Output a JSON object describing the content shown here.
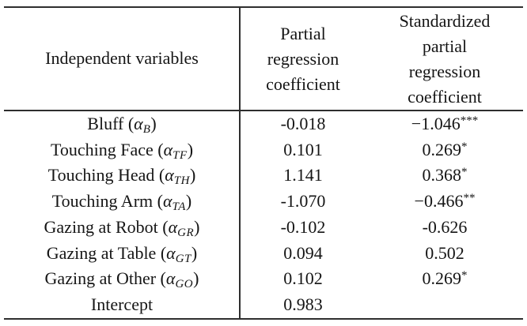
{
  "page": {
    "background_color": "#ffffff",
    "text_color": "#151515",
    "rule_color": "#2e2e2e"
  },
  "table": {
    "headers": {
      "col1": "Independent variables",
      "col2_lines": [
        "Partial",
        "regression",
        "coefficient"
      ],
      "col3_lines": [
        "Standardized",
        "partial",
        "regression",
        "coefficient"
      ]
    },
    "rows": [
      {
        "label_pre": "Bluff (",
        "alpha": "α",
        "sub": "B",
        "label_post": ")",
        "partial": "-0.018",
        "std": "−1.046",
        "stars": "***"
      },
      {
        "label_pre": "Touching Face (",
        "alpha": "α",
        "sub": "TF",
        "label_post": ")",
        "partial": "0.101",
        "std": "0.269",
        "stars": "*"
      },
      {
        "label_pre": "Touching Head (",
        "alpha": "α",
        "sub": "TH",
        "label_post": ")",
        "partial": "1.141",
        "std": "0.368",
        "stars": "*"
      },
      {
        "label_pre": "Touching Arm (",
        "alpha": "α",
        "sub": "TA",
        "label_post": ")",
        "partial": "-1.070",
        "std": "−0.466",
        "stars": "**"
      },
      {
        "label_pre": "Gazing at Robot (",
        "alpha": "α",
        "sub": "GR",
        "label_post": ")",
        "partial": "-0.102",
        "std": "-0.626",
        "stars": ""
      },
      {
        "label_pre": "Gazing at Table (",
        "alpha": "α",
        "sub": "GT",
        "label_post": ")",
        "partial": "0.094",
        "std": "0.502",
        "stars": ""
      },
      {
        "label_pre": "Gazing at Other (",
        "alpha": "α",
        "sub": "GO",
        "label_post": ")",
        "partial": "0.102",
        "std": "0.269",
        "stars": "*"
      },
      {
        "label_pre": "Intercept",
        "alpha": "",
        "sub": "",
        "label_post": "",
        "partial": "0.983",
        "std": "",
        "stars": ""
      }
    ]
  }
}
